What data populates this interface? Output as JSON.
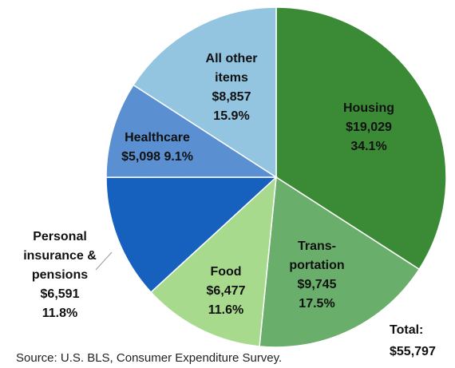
{
  "chart_data": {
    "type": "pie",
    "categories": [
      "Housing",
      "Trans-\nportation",
      "Food",
      "Personal\ninsurance &\npensions",
      "Healthcare",
      "All other\nitems"
    ],
    "values": [
      19029,
      9745,
      6477,
      6591,
      5098,
      8857
    ],
    "value_labels": [
      "$19,029",
      "$9,745",
      "$6,477",
      "$6,591",
      "$5,098",
      "$8,857"
    ],
    "percent_labels": [
      "34.1%",
      "17.5%",
      "11.6%",
      "11.8%",
      "9.1%",
      "15.9%"
    ],
    "colors": [
      "#3b8b36",
      "#6aae6b",
      "#a8da8e",
      "#1661be",
      "#5a8fd2",
      "#93c5e1"
    ],
    "total_title": "Total:",
    "total": "$55,797",
    "source": "Source: U.S. BLS, Consumer Expenditure Survey."
  }
}
